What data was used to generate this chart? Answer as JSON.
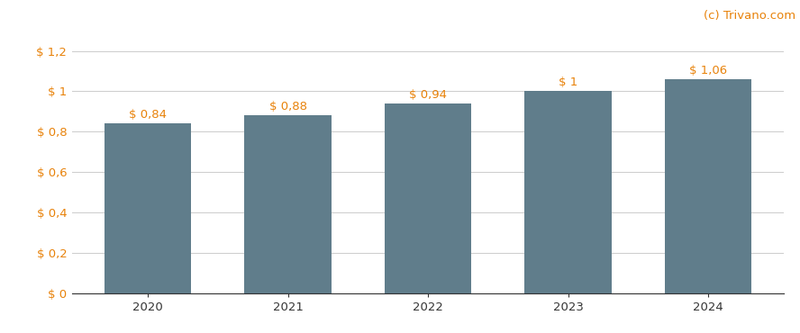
{
  "categories": [
    "2020",
    "2021",
    "2022",
    "2023",
    "2024"
  ],
  "values": [
    0.84,
    0.88,
    0.94,
    1.0,
    1.06
  ],
  "labels": [
    "$ 0,84",
    "$ 0,88",
    "$ 0,94",
    "$ 1",
    "$ 1,06"
  ],
  "bar_color": "#607d8b",
  "background_color": "#ffffff",
  "grid_color": "#cccccc",
  "ytick_labels": [
    "$ 0",
    "$ 0,2",
    "$ 0,4",
    "$ 0,6",
    "$ 0,8",
    "$ 1",
    "$ 1,2"
  ],
  "ytick_values": [
    0,
    0.2,
    0.4,
    0.6,
    0.8,
    1.0,
    1.2
  ],
  "ylim": [
    0,
    1.32
  ],
  "watermark": "(c) Trivano.com",
  "accent_color": "#e8820a",
  "label_fontsize": 9.5,
  "tick_fontsize": 9.5,
  "watermark_fontsize": 9.5,
  "bar_width": 0.62,
  "figsize": [
    8.88,
    3.7
  ],
  "dpi": 100
}
